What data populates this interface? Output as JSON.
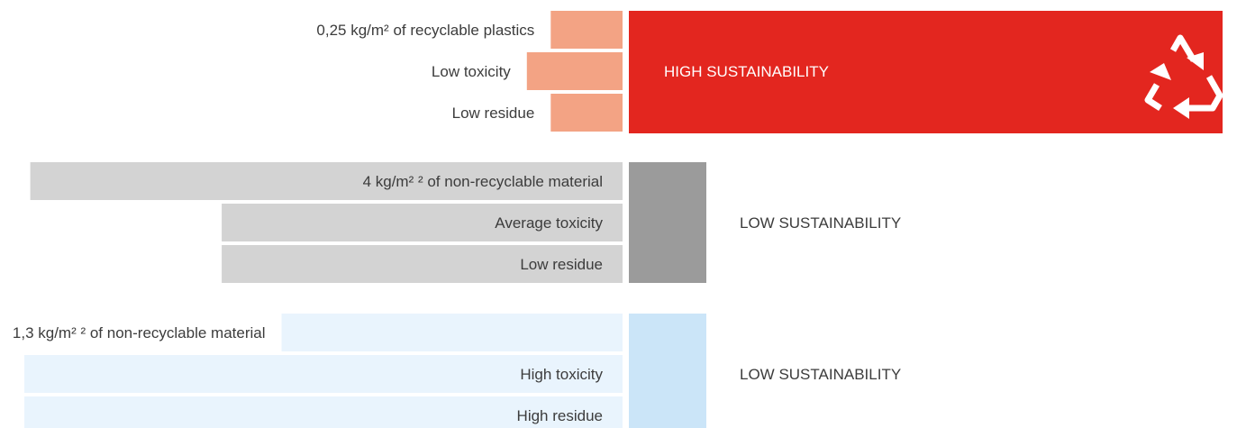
{
  "chart_data": {
    "type": "bar",
    "orientation": "horizontal",
    "bar_direction": "right-to-left",
    "value_axis": "none (relative lengths only)",
    "value_scale": "relative length, longest bar = 1.0",
    "groups": [
      {
        "rating": "HIGH SUSTAINABILITY",
        "rating_color": "#e3261f",
        "rating_text_color": "#ffffff",
        "bar_color": "#f3a384",
        "block_color": "#e3261f",
        "icon": "recycle-icon",
        "bars": [
          {
            "label": "0,25 kg/m² of recyclable plastics",
            "value": 0.12
          },
          {
            "label": "Low toxicity",
            "value": 0.16
          },
          {
            "label": "Low residue",
            "value": 0.12
          }
        ]
      },
      {
        "rating": "LOW SUSTAINABILITY",
        "rating_color": "#3c3c3c",
        "rating_text_color": "#3c3c3c",
        "bar_color": "#d3d3d3",
        "block_color": "#9b9b9b",
        "icon": "",
        "bars": [
          {
            "label": "4 kg/m² ² of non-recyclable material",
            "value": 0.99
          },
          {
            "label": "Average toxicity",
            "value": 0.67
          },
          {
            "label": "Low residue",
            "value": 0.67
          }
        ]
      },
      {
        "rating": "LOW SUSTAINABILITY",
        "rating_color": "#3c3c3c",
        "rating_text_color": "#3c3c3c",
        "bar_color": "#e9f4fd",
        "block_color": "#cbe5f8",
        "icon": "",
        "bars": [
          {
            "label": "1,3 kg/m² ² of non-recyclable material",
            "value": 0.57
          },
          {
            "label": "High toxicity",
            "value": 1.0
          },
          {
            "label": "High residue",
            "value": 1.0
          }
        ]
      }
    ]
  }
}
